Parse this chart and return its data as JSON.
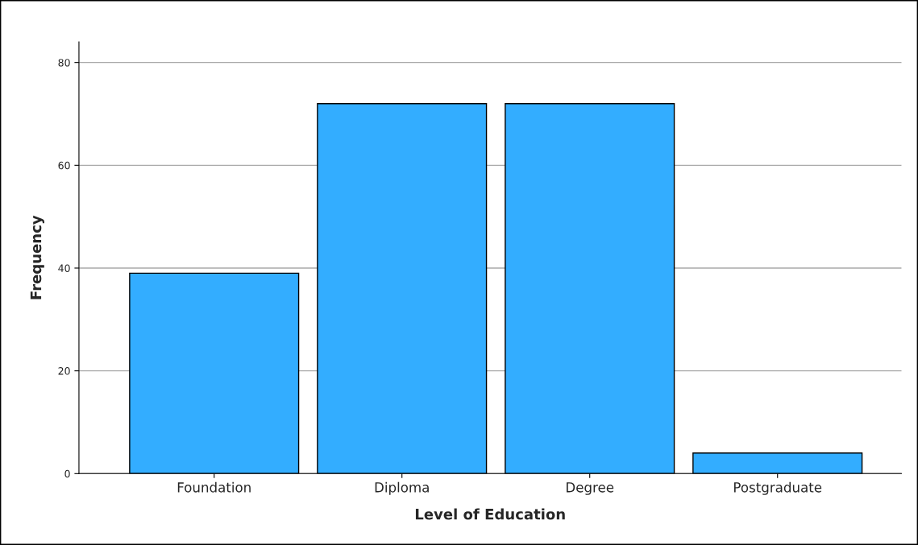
{
  "chart_data": {
    "type": "bar",
    "xlabel": "Level of Education",
    "ylabel": "Frequency",
    "categories": [
      "Foundation",
      "Diploma",
      "Degree",
      "Postgraduate"
    ],
    "values": [
      39,
      72,
      72,
      4
    ],
    "color": "#33adff",
    "ylim": [
      0,
      84
    ],
    "yticks": [
      0,
      20,
      40,
      60,
      80
    ],
    "grid": "y"
  }
}
